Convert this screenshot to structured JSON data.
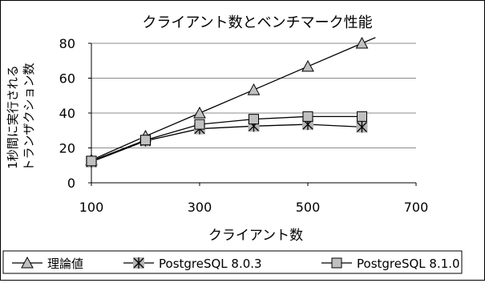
{
  "chart_data": {
    "type": "line",
    "title": "クライアント数とベンチマーク性能",
    "xlabel": "クライアント数",
    "ylabel_line1": "1秒間に実行される",
    "ylabel_line2": "トランザクション数",
    "xlim": [
      100,
      700
    ],
    "ylim": [
      0,
      80
    ],
    "x_ticks": [
      100,
      300,
      500,
      700
    ],
    "y_ticks": [
      0,
      20,
      40,
      60,
      80
    ],
    "grid": true,
    "legend_position": "bottom",
    "series": [
      {
        "name": "理論値",
        "marker": "triangle",
        "x": [
          100,
          200,
          300,
          400,
          500,
          600,
          625
        ],
        "y": [
          13,
          26.7,
          40,
          53.3,
          66.7,
          80,
          83.3
        ]
      },
      {
        "name": "PostgreSQL 8.0.3",
        "marker": "star",
        "x": [
          100,
          200,
          300,
          400,
          500,
          600
        ],
        "y": [
          12,
          24,
          31,
          32.5,
          33.5,
          32
        ]
      },
      {
        "name": "PostgreSQL 8.1.0",
        "marker": "square",
        "x": [
          100,
          200,
          300,
          400,
          500,
          600
        ],
        "y": [
          12.5,
          24.5,
          33.5,
          36.5,
          38,
          38
        ]
      }
    ]
  }
}
